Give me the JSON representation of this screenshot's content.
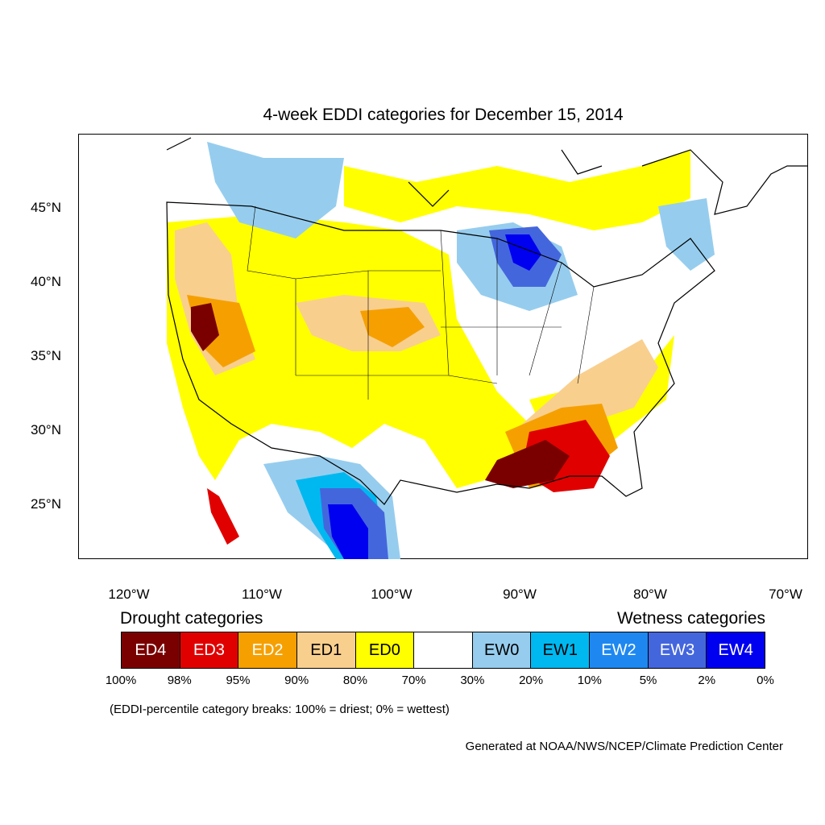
{
  "title": "4-week EDDI categories for December 15, 2014",
  "map": {
    "lat_labels": [
      "45°N",
      "40°N",
      "35°N",
      "30°N",
      "25°N"
    ],
    "lon_labels": [
      "120°W",
      "110°W",
      "100°W",
      "90°W",
      "80°W",
      "70°W"
    ],
    "colors": {
      "ED4": "#7a0000",
      "ED3": "#e00000",
      "ED2": "#f5a000",
      "ED1": "#f9cf8e",
      "ED0": "#ffff00",
      "neutral": "#ffffff",
      "EW0": "#96cdee",
      "EW1": "#00b8f0",
      "EW2": "#1e88f0",
      "EW3": "#4466dd",
      "EW4": "#0000f0",
      "land_outline": "#000000"
    }
  },
  "legend": {
    "drought_title": "Drought categories",
    "wetness_title": "Wetness categories",
    "categories": [
      {
        "label": "ED4",
        "color": "#7a0000",
        "text_color": "#ffffff"
      },
      {
        "label": "ED3",
        "color": "#e00000",
        "text_color": "#ffffff"
      },
      {
        "label": "ED2",
        "color": "#f5a000",
        "text_color": "#ffffff"
      },
      {
        "label": "ED1",
        "color": "#f9cf8e",
        "text_color": "#000000"
      },
      {
        "label": "ED0",
        "color": "#ffff00",
        "text_color": "#000000"
      },
      {
        "label": "",
        "color": "#ffffff",
        "text_color": "#000000"
      },
      {
        "label": "EW0",
        "color": "#96cdee",
        "text_color": "#000000"
      },
      {
        "label": "EW1",
        "color": "#00b8f0",
        "text_color": "#000000"
      },
      {
        "label": "EW2",
        "color": "#1e88f0",
        "text_color": "#ffffff"
      },
      {
        "label": "EW3",
        "color": "#4466dd",
        "text_color": "#ffffff"
      },
      {
        "label": "EW4",
        "color": "#0000f0",
        "text_color": "#ffffff"
      }
    ],
    "breaks": [
      "100%",
      "98%",
      "95%",
      "90%",
      "80%",
      "70%",
      "30%",
      "20%",
      "10%",
      "5%",
      "2%",
      "0%"
    ],
    "note": "(EDDI-percentile category breaks: 100% = driest; 0% = wettest)"
  },
  "credit": "Generated at NOAA/NWS/NCEP/Climate Prediction Center"
}
